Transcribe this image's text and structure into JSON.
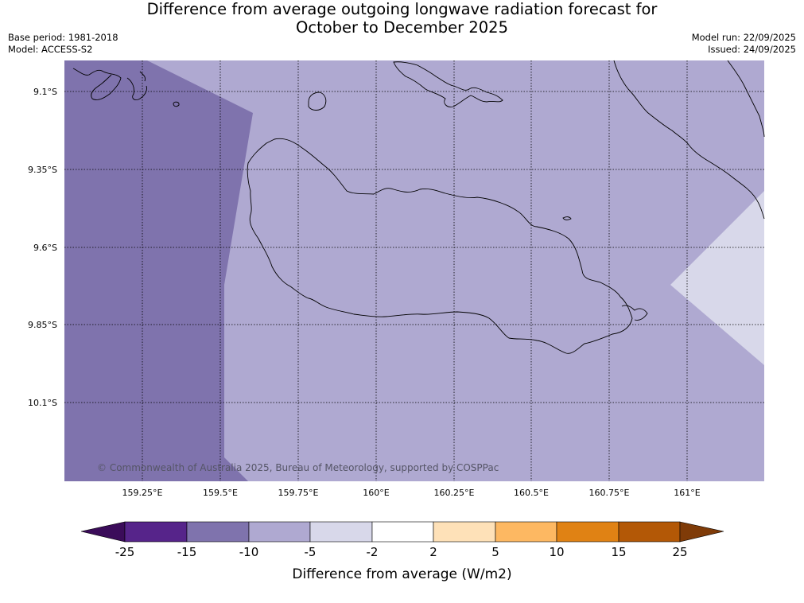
{
  "header": {
    "title_line1": "Difference from average outgoing longwave radiation forecast for",
    "title_line2": "October to December 2025",
    "base_period": "Base period: 1981-2018",
    "model": "Model: ACCESS-S2",
    "model_run": "Model run: 22/09/2025",
    "issued": "Issued: 24/09/2025"
  },
  "map": {
    "lat_labels": [
      "9.1°S",
      "9.35°S",
      "9.6°S",
      "9.85°S",
      "10.1°S"
    ],
    "lon_labels": [
      "159.25°E",
      "159.5°E",
      "159.75°E",
      "160°E",
      "160.25°E",
      "160.5°E",
      "160.75°E",
      "161°E"
    ],
    "copyright": "© Commonwealth of Australia 2025, Bureau of Meteorology, supported by COSPPac",
    "region_colors": {
      "strong_negative": "#7f73ad",
      "moderate_negative": "#afa9d1",
      "weak_negative": "#d8d8ea",
      "coastline": "#000000"
    }
  },
  "colorbar": {
    "label": "Difference from average (W/m2)",
    "ticks": [
      "-25",
      "-15",
      "-10",
      "-5",
      "-2",
      "2",
      "5",
      "10",
      "15",
      "25"
    ],
    "colors": [
      "#3b0c5a",
      "#56248a",
      "#7f73ad",
      "#afa9d1",
      "#d8d8ea",
      "#ffffff",
      "#fee1b8",
      "#fdb862",
      "#e08214",
      "#b35806",
      "#7f3b08"
    ]
  }
}
